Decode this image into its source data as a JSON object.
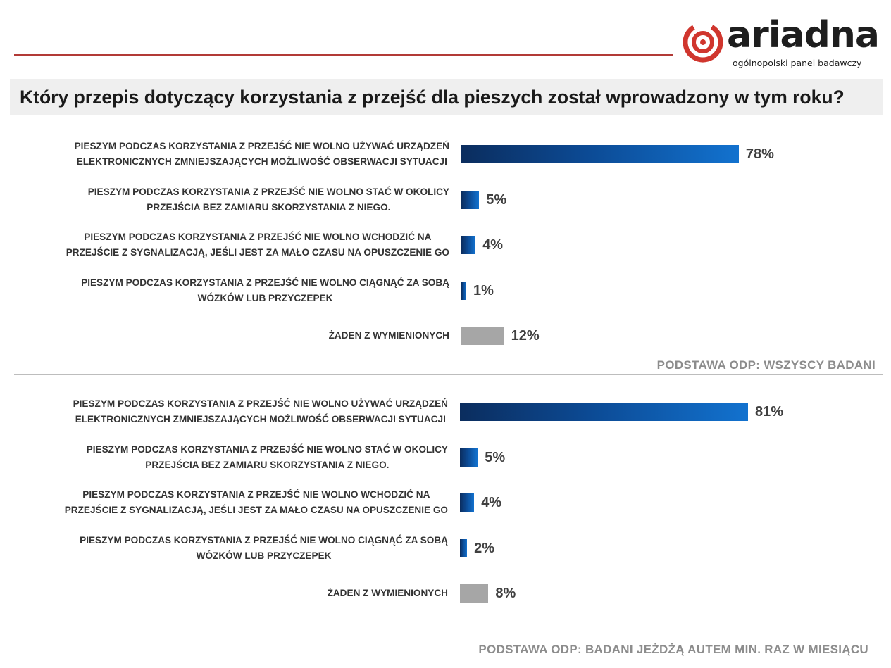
{
  "logo": {
    "wordmark": "ariadna",
    "tagline": "ogólnopolski panel badawczy",
    "color_accent": "#d0362e"
  },
  "title": "Który przepis dotyczący korzystania z przejść dla pieszych został wprowadzony w tym roku?",
  "colors": {
    "bar_gradient": [
      "#0b2d5e",
      "#1272cf"
    ],
    "bar_other": "#a6a6a6",
    "rule": "#b23a36"
  },
  "chart_data": [
    {
      "type": "bar",
      "orientation": "horizontal",
      "unit": "%",
      "categories": [
        "PIESZYM PODCZAS KORZYSTANIA Z PRZEJŚĆ NIE WOLNO UŻYWAĆ URZĄDZEŃ ELEKTRONICZNYCH ZMNIEJSZAJĄCYCH MOŻLIWOŚĆ OBSERWACJI SYTUACJI",
        "PIESZYM PODCZAS KORZYSTANIA Z PRZEJŚĆ NIE WOLNO STAĆ W OKOLICY PRZEJŚCIA BEZ ZAMIARU SKORZYSTANIA Z NIEGO.",
        "PIESZYM PODCZAS KORZYSTANIA Z PRZEJŚĆ NIE WOLNO WCHODZIĆ NA PRZEJŚCIE Z SYGNALIZACJĄ, JEŚLI JEST ZA MAŁO CZASU NA OPUSZCZENIE GO",
        "PIESZYM PODCZAS KORZYSTANIA Z PRZEJŚĆ NIE WOLNO CIĄGNĄĆ ZA SOBĄ WÓZKÓW LUB PRZYCZEPEK",
        "ŻADEN Z WYMIENIONYCH"
      ],
      "label_lines": [
        [
          "PIESZYM PODCZAS KORZYSTANIA Z PRZEJŚĆ NIE WOLNO UŻYWAĆ URZĄDZEŃ",
          "ELEKTRONICZNYCH ZMNIEJSZAJĄCYCH MOŻLIWOŚĆ OBSERWACJI SYTUACJI"
        ],
        [
          "PIESZYM PODCZAS KORZYSTANIA Z PRZEJŚĆ NIE WOLNO STAĆ W OKOLICY",
          "PRZEJŚCIA BEZ ZAMIARU SKORZYSTANIA Z NIEGO."
        ],
        [
          "PIESZYM PODCZAS KORZYSTANIA Z PRZEJŚĆ NIE WOLNO WCHODZIĆ NA",
          "PRZEJŚCIE Z SYGNALIZACJĄ, JEŚLI JEST ZA MAŁO CZASU NA OPUSZCZENIE GO"
        ],
        [
          "PIESZYM PODCZAS KORZYSTANIA Z PRZEJŚĆ NIE WOLNO CIĄGNĄĆ ZA SOBĄ",
          "WÓZKÓW LUB PRZYCZEPEK"
        ],
        [
          "ŻADEN Z WYMIENIONYCH"
        ]
      ],
      "values": [
        78,
        5,
        4,
        1,
        12
      ],
      "value_labels": [
        "78%",
        "5%",
        "4%",
        "1%",
        "12%"
      ],
      "xlim": [
        0,
        100
      ],
      "grid": false,
      "footnote": "PODSTAWA  ODP: WSZYSCY BADANI"
    },
    {
      "type": "bar",
      "orientation": "horizontal",
      "unit": "%",
      "categories": [
        "PIESZYM PODCZAS KORZYSTANIA Z PRZEJŚĆ NIE WOLNO UŻYWAĆ URZĄDZEŃ ELEKTRONICZNYCH ZMNIEJSZAJĄCYCH MOŻLIWOŚĆ OBSERWACJI SYTUACJI",
        "PIESZYM PODCZAS KORZYSTANIA Z PRZEJŚĆ NIE WOLNO STAĆ W OKOLICY PRZEJŚCIA BEZ ZAMIARU SKORZYSTANIA Z NIEGO.",
        "PIESZYM PODCZAS KORZYSTANIA Z PRZEJŚĆ NIE WOLNO WCHODZIĆ NA PRZEJŚCIE Z SYGNALIZACJĄ, JEŚLI JEST ZA MAŁO CZASU NA OPUSZCZENIE GO",
        "PIESZYM PODCZAS KORZYSTANIA Z PRZEJŚĆ NIE WOLNO CIĄGNĄĆ ZA SOBĄ WÓZKÓW LUB PRZYCZEPEK",
        "ŻADEN Z WYMIENIONYCH"
      ],
      "label_lines": [
        [
          "PIESZYM PODCZAS KORZYSTANIA Z PRZEJŚĆ NIE WOLNO UŻYWAĆ URZĄDZEŃ",
          "ELEKTRONICZNYCH ZMNIEJSZAJĄCYCH MOŻLIWOŚĆ OBSERWACJI SYTUACJI"
        ],
        [
          "PIESZYM PODCZAS KORZYSTANIA Z PRZEJŚĆ NIE WOLNO STAĆ W OKOLICY",
          "PRZEJŚCIA BEZ ZAMIARU SKORZYSTANIA Z NIEGO."
        ],
        [
          "PIESZYM PODCZAS KORZYSTANIA Z PRZEJŚĆ NIE WOLNO WCHODZIĆ NA",
          "PRZEJŚCIE Z SYGNALIZACJĄ, JEŚLI JEST ZA MAŁO CZASU NA OPUSZCZENIE GO"
        ],
        [
          "PIESZYM PODCZAS KORZYSTANIA Z PRZEJŚĆ NIE WOLNO CIĄGNĄĆ ZA SOBĄ",
          "WÓZKÓW LUB PRZYCZEPEK"
        ],
        [
          "ŻADEN Z WYMIENIONYCH"
        ]
      ],
      "values": [
        81,
        5,
        4,
        2,
        8
      ],
      "value_labels": [
        "81%",
        "5%",
        "4%",
        "2%",
        "8%"
      ],
      "xlim": [
        0,
        100
      ],
      "grid": false,
      "footnote": "PODSTAWA  ODP: BADANI JEŻDŻĄ AUTEM  MIN. RAZ W MIESIĄCU"
    }
  ]
}
